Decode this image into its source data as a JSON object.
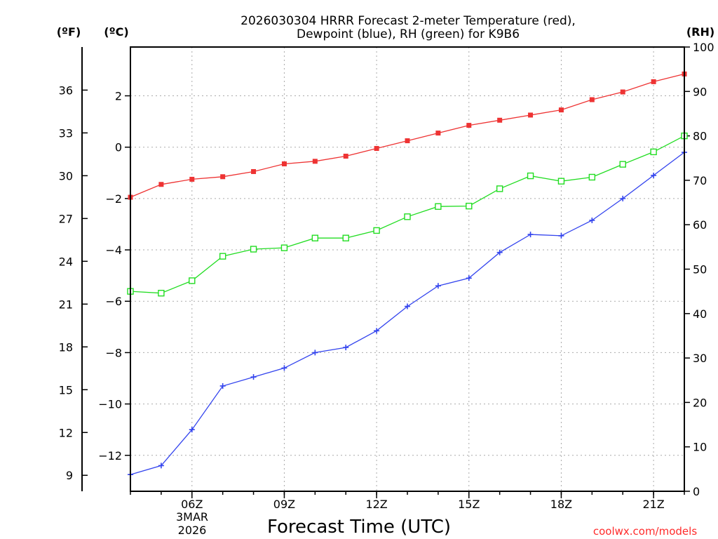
{
  "chart_data": {
    "type": "line",
    "title_line1": "2026030304 HRRR Forecast 2-meter Temperature (red),",
    "title_line2": "Dewpoint (blue), RH (green) for K9B6",
    "xlabel": "Forecast Time (UTC)",
    "credit": "coolwx.com/models",
    "unit_f": "(ºF)",
    "unit_c": "(ºC)",
    "unit_rh": "(RH)",
    "x_hours": [
      4,
      5,
      6,
      7,
      8,
      9,
      10,
      11,
      12,
      13,
      14,
      15,
      16,
      17,
      18,
      19,
      20,
      21,
      22
    ],
    "xlim": [
      4,
      22
    ],
    "x_ticks": [
      {
        "hour": 6,
        "label": "06Z"
      },
      {
        "hour": 9,
        "label": "09Z"
      },
      {
        "hour": 12,
        "label": "12Z"
      },
      {
        "hour": 15,
        "label": "15Z"
      },
      {
        "hour": 18,
        "label": "18Z"
      },
      {
        "hour": 21,
        "label": "21Z"
      }
    ],
    "date_line1": "3MAR",
    "date_line2": "2026",
    "c_ticks": [
      {
        "v": 2,
        "label": "2"
      },
      {
        "v": 0,
        "label": "0"
      },
      {
        "v": -2,
        "label": "−2"
      },
      {
        "v": -4,
        "label": "−4"
      },
      {
        "v": -6,
        "label": "−6"
      },
      {
        "v": -8,
        "label": "−8"
      },
      {
        "v": -10,
        "label": "−10"
      },
      {
        "v": -12,
        "label": "−12"
      }
    ],
    "f_ticks": [
      "36",
      "33",
      "30",
      "27",
      "24",
      "21",
      "18",
      "15",
      "12",
      "9"
    ],
    "rh_ticks": [
      "100",
      "90",
      "80",
      "70",
      "60",
      "50",
      "40",
      "30",
      "20",
      "10",
      "0"
    ],
    "ylim_c": [
      -13.4,
      3.9
    ],
    "ylim_rh": [
      0,
      100
    ],
    "series": [
      {
        "name": "Temperature",
        "axis": "c",
        "color": "#ee3333",
        "marker": "square-filled",
        "values": [
          -1.95,
          -1.45,
          -1.25,
          -1.15,
          -0.95,
          -0.65,
          -0.55,
          -0.35,
          -0.05,
          0.25,
          0.55,
          0.85,
          1.05,
          1.25,
          1.45,
          1.85,
          2.15,
          2.55,
          2.85
        ]
      },
      {
        "name": "Dewpoint",
        "axis": "c",
        "color": "#3344ee",
        "marker": "plus",
        "values": [
          -12.75,
          -12.4,
          -11.0,
          -9.3,
          -8.95,
          -8.6,
          -8.0,
          -7.8,
          -7.15,
          -6.2,
          -5.4,
          -5.1,
          -4.1,
          -3.4,
          -3.45,
          -2.85,
          -2.0,
          -1.1,
          -0.2
        ]
      },
      {
        "name": "RH",
        "axis": "rh",
        "color": "#22dd22",
        "marker": "square-open",
        "values": [
          45.0,
          44.6,
          47.4,
          52.9,
          54.5,
          54.8,
          57.0,
          57.0,
          58.7,
          61.8,
          64.1,
          64.2,
          68.1,
          71.0,
          69.8,
          70.7,
          73.6,
          76.4,
          80.0
        ]
      }
    ],
    "colors": {
      "grid": "#aaaaaa",
      "axis": "#000000"
    }
  }
}
